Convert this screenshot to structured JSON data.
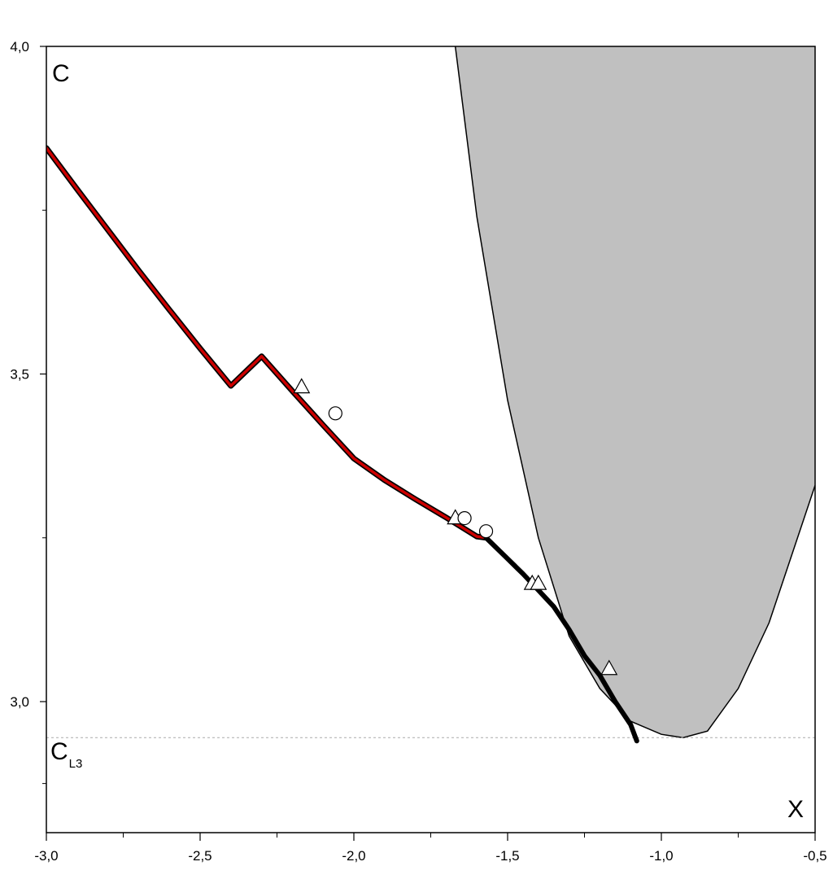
{
  "chart_data": {
    "type": "line",
    "title": "",
    "xlabel": "X",
    "ylabel": "C",
    "xlim": [
      -3.0,
      -0.5
    ],
    "ylim": [
      2.8,
      4.0
    ],
    "x_ticks": [
      -3.0,
      -2.5,
      -2.0,
      -1.5,
      -1.0,
      -0.5
    ],
    "x_tick_labels": [
      "-3,0",
      "-2,5",
      "-2,0",
      "-1,5",
      "-1,0",
      "-0,5"
    ],
    "y_ticks": [
      3.0,
      3.5,
      4.0
    ],
    "y_tick_labels": [
      "3,0",
      "3,5",
      "4,0"
    ],
    "grid": false,
    "colors": {
      "red_branch": "#cc0000",
      "black_branch": "#000000",
      "region_fill": "#c0c0c0",
      "reference_line": "#aaaaaa"
    },
    "reference_line": {
      "label": "C",
      "label_sub": "L3",
      "y": 2.945
    },
    "region_boundary": {
      "x": [
        -1.67,
        -1.6,
        -1.5,
        -1.4,
        -1.3,
        -1.2,
        -1.1,
        -1.0,
        -0.93,
        -0.85,
        -0.75,
        -0.65,
        -0.5
      ],
      "y": [
        4.0,
        3.74,
        3.46,
        3.25,
        3.1,
        3.02,
        2.97,
        2.95,
        2.945,
        2.955,
        3.02,
        3.12,
        3.33
      ]
    },
    "series": [
      {
        "style": "red",
        "x": [
          -3.0,
          -2.9,
          -2.8,
          -2.7,
          -2.6,
          -2.5,
          -2.4,
          -2.3,
          -2.2,
          -2.1,
          -2.0,
          -1.9,
          -1.8,
          -1.7,
          -1.6,
          -1.57
        ],
        "y": [
          3.845,
          3.782,
          3.72,
          3.658,
          3.598,
          3.539,
          3.482,
          3.527,
          3.474,
          3.422,
          3.371,
          3.338,
          3.309,
          3.281,
          3.252,
          3.25
        ]
      },
      {
        "style": "black",
        "x": [
          -1.57,
          -1.5,
          -1.45,
          -1.4,
          -1.35,
          -1.3,
          -1.25,
          -1.2,
          -1.15,
          -1.1,
          -1.08
        ],
        "y": [
          3.25,
          3.218,
          3.195,
          3.17,
          3.145,
          3.11,
          3.07,
          3.04,
          3.0,
          2.965,
          2.94
        ]
      }
    ],
    "triangle_markers": [
      {
        "x": -2.17,
        "y": 3.48
      },
      {
        "x": -1.67,
        "y": 3.28
      },
      {
        "x": -1.42,
        "y": 3.18
      },
      {
        "x": -1.4,
        "y": 3.18
      },
      {
        "x": -1.17,
        "y": 3.05
      }
    ],
    "circle_markers": [
      {
        "x": -2.06,
        "y": 3.44
      },
      {
        "x": -1.64,
        "y": 3.28
      },
      {
        "x": -1.57,
        "y": 3.26
      }
    ]
  }
}
